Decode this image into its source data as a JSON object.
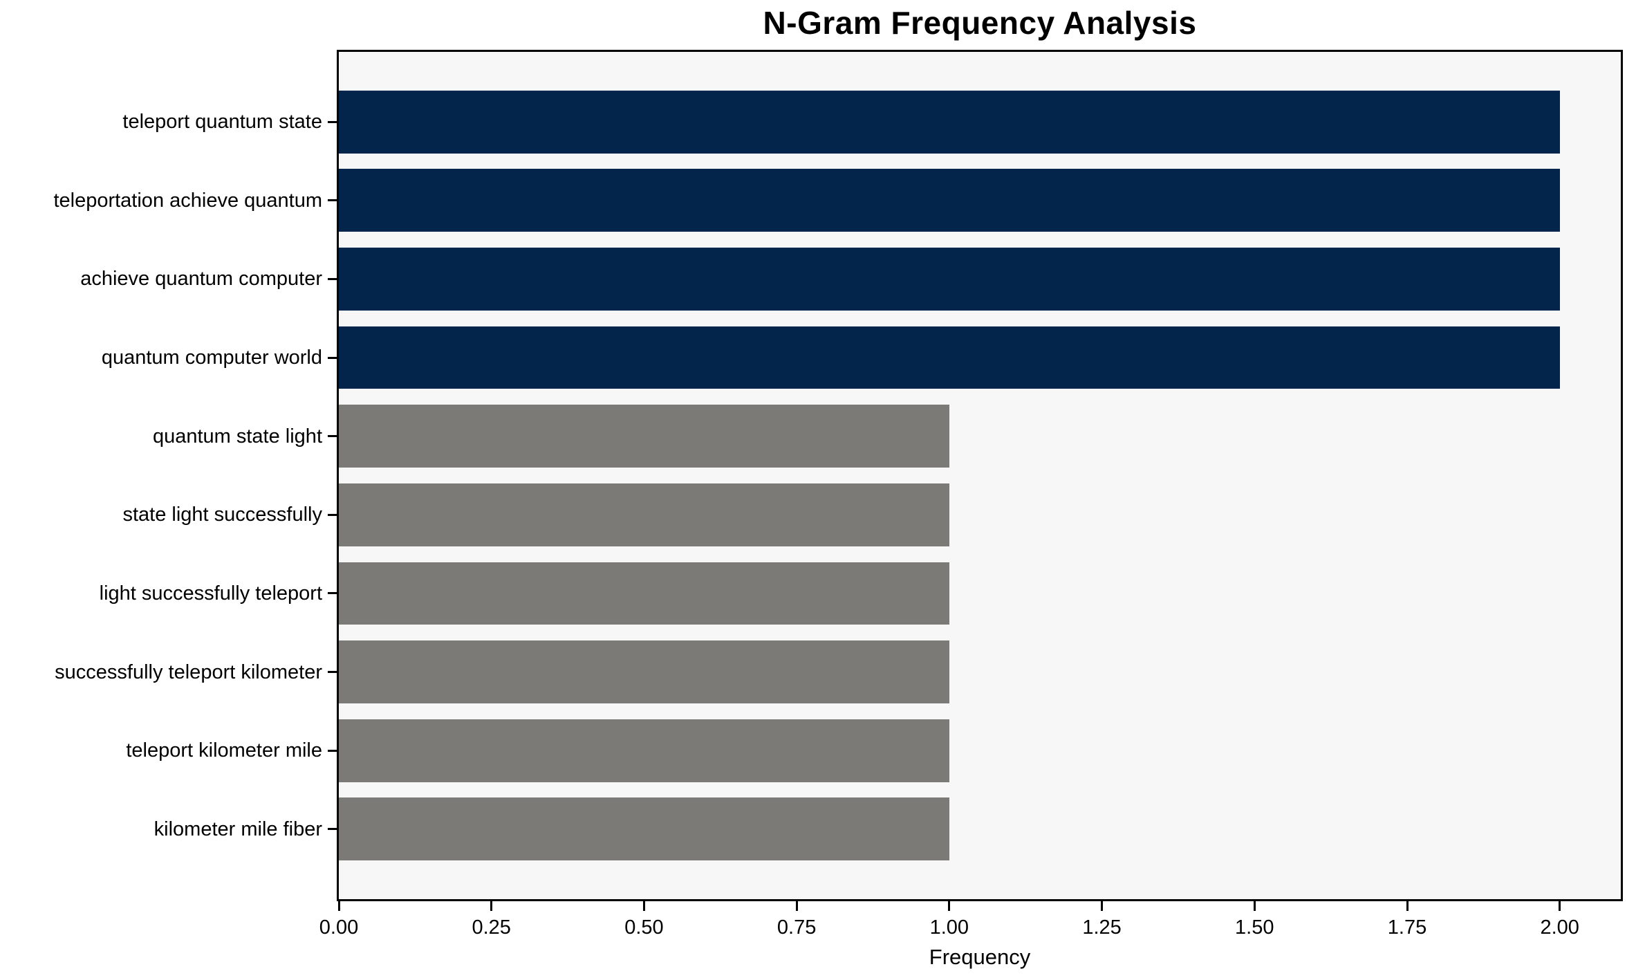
{
  "chart_data": {
    "type": "bar",
    "orientation": "horizontal",
    "title": "N-Gram Frequency Analysis",
    "xlabel": "Frequency",
    "ylabel": "",
    "categories": [
      "teleport quantum state",
      "teleportation achieve quantum",
      "achieve quantum computer",
      "quantum computer world",
      "quantum state light",
      "state light successfully",
      "light successfully teleport",
      "successfully teleport kilometer",
      "teleport kilometer mile",
      "kilometer mile fiber"
    ],
    "values": [
      2,
      2,
      2,
      2,
      1,
      1,
      1,
      1,
      1,
      1
    ],
    "bar_colors": [
      "#03254c",
      "#03254c",
      "#03254c",
      "#03254c",
      "#7b7a77",
      "#7b7a77",
      "#7b7a77",
      "#7b7a77",
      "#7b7a77",
      "#7b7a77"
    ],
    "xlim": [
      0,
      2.1
    ],
    "xticks": [
      0,
      0.25,
      0.5,
      0.75,
      1.0,
      1.25,
      1.5,
      1.75,
      2.0
    ],
    "xtick_labels": [
      "0.00",
      "0.25",
      "0.50",
      "0.75",
      "1.00",
      "1.25",
      "1.50",
      "1.75",
      "2.00"
    ],
    "grid": false,
    "legend": null,
    "plot_background": "#f7f7f7",
    "figure_background": "#ffffff",
    "spine_color": "#000000"
  }
}
